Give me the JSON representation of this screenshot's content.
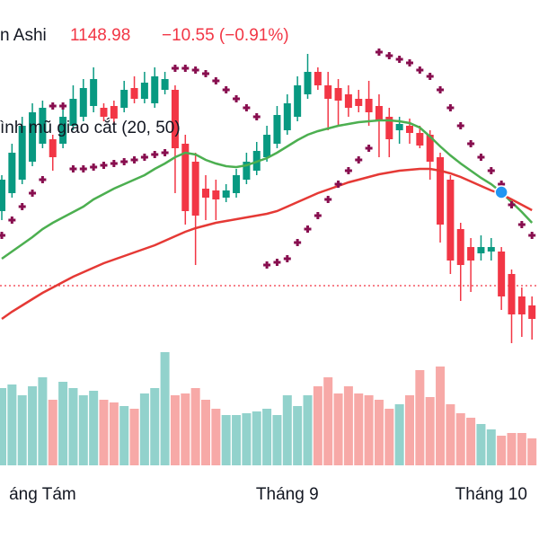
{
  "chart_data": {
    "type": "candlestick",
    "title": "n Ashi",
    "last_price": 1148.98,
    "change": "−10.55 (−0.91%)",
    "indicator_label": "ình mũ giao cắt (20, 50)",
    "up_color": "#089981",
    "down_color": "#f23645",
    "volume_up_color": "#92d2cc",
    "volume_down_color": "#f7a9a7",
    "ylim": [
      867,
      1467
    ],
    "volume_ylim": [
      0,
      130
    ],
    "xticks": [
      {
        "value": 4,
        "label": "áng Tám"
      },
      {
        "value": 28,
        "label": "Tháng 9"
      },
      {
        "value": 48,
        "label": "Tháng 10"
      }
    ],
    "ohlc": [
      [
        1232,
        1272,
        1222,
        1267
      ],
      [
        1252,
        1307,
        1247,
        1297
      ],
      [
        1267,
        1337,
        1262,
        1327
      ],
      [
        1287,
        1352,
        1282,
        1342
      ],
      [
        1307,
        1355,
        1302,
        1347
      ],
      [
        1312,
        1317,
        1277,
        1292
      ],
      [
        1307,
        1347,
        1302,
        1337
      ],
      [
        1327,
        1372,
        1322,
        1357
      ],
      [
        1337,
        1379,
        1332,
        1369
      ],
      [
        1349,
        1392,
        1342,
        1379
      ],
      [
        1347,
        1352,
        1332,
        1337
      ],
      [
        1349,
        1355,
        1329,
        1335
      ],
      [
        1347,
        1377,
        1342,
        1367
      ],
      [
        1369,
        1382,
        1352,
        1357
      ],
      [
        1357,
        1387,
        1352,
        1375
      ],
      [
        1352,
        1392,
        1347,
        1382
      ],
      [
        1367,
        1387,
        1362,
        1379
      ],
      [
        1367,
        1372,
        1252,
        1302
      ],
      [
        1307,
        1317,
        1217,
        1232
      ],
      [
        1287,
        1297,
        1172,
        1227
      ],
      [
        1257,
        1272,
        1222,
        1247
      ],
      [
        1255,
        1267,
        1222,
        1245
      ],
      [
        1247,
        1262,
        1242,
        1255
      ],
      [
        1252,
        1279,
        1247,
        1272
      ],
      [
        1267,
        1297,
        1262,
        1287
      ],
      [
        1277,
        1309,
        1272,
        1299
      ],
      [
        1292,
        1327,
        1287,
        1317
      ],
      [
        1307,
        1349,
        1302,
        1339
      ],
      [
        1322,
        1362,
        1317,
        1352
      ],
      [
        1337,
        1382,
        1332,
        1372
      ],
      [
        1362,
        1407,
        1357,
        1387
      ],
      [
        1387,
        1392,
        1367,
        1372
      ],
      [
        1372,
        1387,
        1322,
        1357
      ],
      [
        1369,
        1379,
        1327,
        1355
      ],
      [
        1362,
        1372,
        1337,
        1347
      ],
      [
        1357,
        1367,
        1342,
        1349
      ],
      [
        1357,
        1377,
        1327,
        1342
      ],
      [
        1349,
        1362,
        1292,
        1332
      ],
      [
        1337,
        1347,
        1292,
        1312
      ],
      [
        1322,
        1337,
        1307,
        1329
      ],
      [
        1327,
        1335,
        1307,
        1319
      ],
      [
        1319,
        1327,
        1302,
        1305
      ],
      [
        1317,
        1322,
        1267,
        1287
      ],
      [
        1292,
        1297,
        1197,
        1217
      ],
      [
        1267,
        1272,
        1162,
        1177
      ],
      [
        1212,
        1219,
        1132,
        1172
      ],
      [
        1192,
        1202,
        1142,
        1177
      ],
      [
        1185,
        1205,
        1177,
        1192
      ],
      [
        1187,
        1202,
        1177,
        1192
      ],
      [
        1187,
        1192,
        1122,
        1137
      ],
      [
        1162,
        1167,
        1085,
        1117
      ],
      [
        1137,
        1147,
        1092,
        1117
      ],
      [
        1127,
        1137,
        1089,
        1112
      ]
    ],
    "volume": [
      86,
      90,
      78,
      88,
      98,
      73,
      93,
      86,
      78,
      83,
      73,
      70,
      66,
      63,
      80,
      86,
      126,
      78,
      80,
      86,
      73,
      63,
      56,
      56,
      58,
      60,
      63,
      56,
      78,
      66,
      78,
      88,
      98,
      80,
      88,
      80,
      78,
      73,
      63,
      68,
      78,
      106,
      76,
      110,
      68,
      58,
      53,
      46,
      40,
      33,
      36,
      36,
      30
    ],
    "lines": [
      {
        "color": "#4caf50",
        "values": [
          1179,
          1187,
          1195,
          1203,
          1212,
          1219,
          1225,
          1231,
          1237,
          1245,
          1251,
          1257,
          1262,
          1267,
          1272,
          1279,
          1285,
          1292,
          1297,
          1295,
          1289,
          1285,
          1282,
          1281,
          1283,
          1287,
          1291,
          1297,
          1304,
          1311,
          1317,
          1321,
          1324,
          1327,
          1329,
          1331,
          1332,
          1333,
          1333,
          1332,
          1330,
          1325,
          1315,
          1304,
          1294,
          1285,
          1277,
          1269,
          1262,
          1253,
          1242,
          1231,
          1219
        ]
      },
      {
        "color": "#e53935",
        "values": [
          1112,
          1120,
          1127,
          1134,
          1141,
          1147,
          1153,
          1159,
          1164,
          1169,
          1174,
          1178,
          1182,
          1186,
          1190,
          1194,
          1199,
          1204,
          1209,
          1213,
          1216,
          1219,
          1221,
          1223,
          1225,
          1227,
          1229,
          1232,
          1237,
          1242,
          1247,
          1252,
          1256,
          1260,
          1264,
          1267,
          1270,
          1273,
          1275,
          1277,
          1278,
          1279,
          1279,
          1277,
          1274,
          1270,
          1265,
          1260,
          1255,
          1251,
          1245,
          1239,
          1233
        ]
      }
    ],
    "sar": {
      "color": "#880e4f",
      "values": [
        1205,
        1222,
        1237,
        1252,
        1267,
        1349,
        1349,
        1279,
        1279,
        1281,
        1283,
        1285,
        1287,
        1289,
        1292,
        1295,
        1297,
        1391,
        1391,
        1389,
        1385,
        1377,
        1367,
        1357,
        1347,
        1337,
        1172,
        1175,
        1179,
        1197,
        1212,
        1227,
        1245,
        1262,
        1277,
        1289,
        1302,
        1409,
        1405,
        1401,
        1397,
        1389,
        1382,
        1367,
        1347,
        1327,
        1307,
        1292,
        1277,
        1262,
        1239,
        1217,
        1205
      ]
    },
    "cross": {
      "index": 49,
      "color": "#2196f3"
    }
  }
}
